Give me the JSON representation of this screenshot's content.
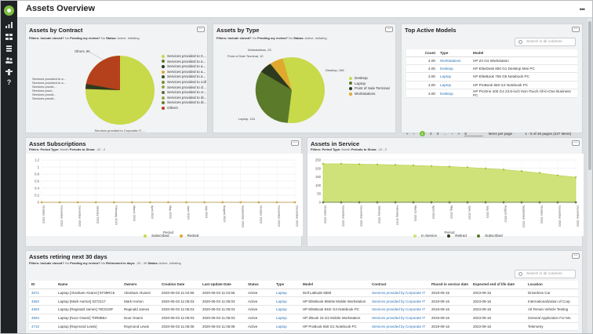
{
  "nav": {
    "icons": [
      "chart-icon",
      "grid-icon",
      "users-icon",
      "layers-icon",
      "help-icon"
    ]
  },
  "header": {
    "title": "Assets Overview",
    "menu": "•••"
  },
  "contract_panel": {
    "title": "Assets by Contract",
    "filters": {
      "closed_label": "Filters:",
      "closed_key": "Include closed?",
      "closed_val": "No",
      "pending_key": "Pending my review?",
      "pending_val": "No",
      "status_key": "Status:",
      "status_val": "Active, Initiating"
    },
    "slice_labels": [
      "Others, 96",
      "Services provided to a...",
      "Services provided to a...",
      "Services provid...",
      "Services provi...",
      "Services provid...",
      "Services provid...",
      "Services provided to Corporate IT, ..."
    ],
    "legend": [
      {
        "label": "Services provided to C...",
        "color": "#c8d94a"
      },
      {
        "label": "Services provided to a...",
        "color": "#5b7a2a"
      },
      {
        "label": "Services provided to a...",
        "color": "#2d3a1e"
      },
      {
        "label": "Services provided to a...",
        "color": "#e0a92e"
      },
      {
        "label": "Services provided to a...",
        "color": "#3f4f28"
      },
      {
        "label": "Services provided to coll",
        "color": "#7a8c3a"
      },
      {
        "label": "Services provided to cl...",
        "color": "#9aa33f"
      },
      {
        "label": "Services provided to cr...",
        "color": "#5c6e34"
      },
      {
        "label": "Services provided to di...",
        "color": "#8ea746"
      },
      {
        "label": "Services provided to di...",
        "color": "#6a7e2c"
      },
      {
        "label": "Others",
        "color": "#b5401c"
      }
    ]
  },
  "type_panel": {
    "title": "Assets by Type",
    "filters": {
      "closed_label": "Filters:",
      "closed_key": "Include closed?",
      "closed_val": "No",
      "pending_key": "Pending my review?",
      "pending_val": "No",
      "status_key": "Status:",
      "status_val": "Active, Initiating"
    },
    "slice_labels": [
      "Workstations, 20",
      "Point of Sale Terminal, 10",
      "Desktop, 106",
      "Laptop, 116"
    ],
    "legend": [
      {
        "label": "Desktop",
        "color": "#c8d94a"
      },
      {
        "label": "Laptop",
        "color": "#5b7a2a"
      },
      {
        "label": "Point of Sale Terminal",
        "color": "#2d3a1e"
      },
      {
        "label": "Workstations",
        "color": "#e0a92e"
      }
    ]
  },
  "top_models": {
    "title": "Top Active Models",
    "search_placeholder": "Search in all columns",
    "columns": [
      "Count",
      "Type",
      "Model"
    ],
    "rows": [
      {
        "count": "4.00",
        "type": "Workstations",
        "model": "HP Z4 G4 Workstation"
      },
      {
        "count": "4.00",
        "type": "Desktop",
        "model": "HP EliteDesk 800 G1 Desktop Mini PC"
      },
      {
        "count": "3.00",
        "type": "Laptop",
        "model": "HP EliteBook 755 G5 Notebook PC"
      },
      {
        "count": "3.00",
        "type": "Laptop",
        "model": "HP ProBook 650 G4 Notebook PC"
      },
      {
        "count": "3.00",
        "type": "Desktop",
        "model": "HP ProOne 400 G4 23.8-inch Non-Touch All-in-One Business PC"
      }
    ],
    "pager": {
      "first": "«",
      "prev": "‹",
      "pages": [
        "1",
        "2",
        "3"
      ],
      "ellipsis": "...",
      "next": "›",
      "last": "»",
      "per_page": "5",
      "per_page_label": "items per page",
      "summary": "1 - 5 of 46 pages (227 items)"
    }
  },
  "subscriptions": {
    "title": "Asset Subscriptions",
    "filters": {
      "label": "Filters:",
      "period_key": "Period Type:",
      "period_val": "Month",
      "show_key": "Periods to Show:",
      "show_val": "-12 - 2"
    },
    "xlabel": "Period",
    "legend": [
      "Subscribed",
      "Retired"
    ]
  },
  "in_service": {
    "title": "Assets in Service",
    "filters": {
      "label": "Filters:",
      "period_key": "Period Type:",
      "period_val": "Month",
      "show_key": "Periods to Show:",
      "show_val": "-12 - 2"
    },
    "xlabel": "Period",
    "legend": [
      "In Service",
      "Retired",
      "Subscribed"
    ]
  },
  "chart_data": [
    {
      "type": "line",
      "title": "Asset Subscriptions",
      "xlabel": "Period",
      "ylabel": "",
      "categories": [
        "October 2022",
        "November 2022",
        "December 2022",
        "January 2023",
        "February 2023",
        "March 2023",
        "April 2023",
        "May 2023",
        "June 2023",
        "July 2023",
        "August 2023",
        "September 2023",
        "October 2023",
        "November 2023",
        "December 2023"
      ],
      "ylim": [
        0,
        1.2
      ],
      "yticks": [
        "0",
        "0.2",
        "0.4",
        "0.6",
        "0.8",
        "1",
        "1.2"
      ],
      "series": [
        {
          "name": "Subscribed",
          "values": [
            0,
            0,
            0,
            0,
            0,
            0,
            0,
            0,
            0,
            0,
            0,
            0,
            0,
            0,
            0
          ]
        },
        {
          "name": "Retired",
          "values": [
            0,
            0,
            0,
            0,
            0,
            0,
            0,
            0,
            0,
            0,
            0,
            0,
            0,
            0,
            0
          ]
        }
      ]
    },
    {
      "type": "area",
      "title": "Assets in Service",
      "xlabel": "Period",
      "ylabel": "",
      "categories": [
        "October 2022",
        "November 2022",
        "December 2022",
        "January 2023",
        "February 2023",
        "March 2023",
        "April 2023",
        "May 2023",
        "June 2023",
        "July 2023",
        "August 2023",
        "September 2023",
        "October 2023",
        "November 2023",
        "December 2023"
      ],
      "ylim": [
        0,
        250
      ],
      "yticks": [
        "0",
        "50",
        "100",
        "150",
        "200",
        "250"
      ],
      "series": [
        {
          "name": "In Service",
          "values": [
            227,
            227,
            225,
            223,
            221,
            218,
            214,
            211,
            206,
            200,
            193,
            184,
            173,
            159,
            148
          ]
        },
        {
          "name": "Retired",
          "values": [
            0,
            0,
            0,
            0,
            0,
            0,
            0,
            0,
            0,
            0,
            0,
            0,
            0,
            0,
            0
          ]
        },
        {
          "name": "Subscribed",
          "values": [
            0,
            0,
            0,
            0,
            0,
            0,
            0,
            0,
            0,
            0,
            0,
            0,
            0,
            0,
            0
          ]
        }
      ]
    },
    {
      "type": "pie",
      "title": "Assets by Type",
      "categories": [
        "Desktop",
        "Laptop",
        "Point of Sale Terminal",
        "Workstations"
      ],
      "values": [
        106,
        116,
        10,
        20
      ]
    },
    {
      "type": "pie",
      "title": "Assets by Contract",
      "categories": [
        "Services provided to Corporate IT",
        "Services provided to a...",
        "Services provided to a...",
        "Services provided to a...",
        "Services provided to a...",
        "Services provided to coll",
        "Services provided to cl...",
        "Services provided to cr...",
        "Services provided to di...",
        "Services provided to di...",
        "Others"
      ],
      "values": [
        140,
        2,
        2,
        2,
        1,
        1,
        1,
        1,
        1,
        1,
        96
      ]
    }
  ],
  "retiring": {
    "title": "Assets retiring next 30 days",
    "filters": {
      "label": "Filters:",
      "closed_key": "Include closed?",
      "closed_val": "No",
      "pending_key": "Pending my review?",
      "pending_val": "No",
      "days_key": "Retirement in days:",
      "days_val": "-20 - 30",
      "status_key": "Status:",
      "status_val": "Active, Initiating"
    },
    "columns": [
      "ID",
      "Name",
      "Owners",
      "Creation Date",
      "Last Update Date",
      "Status",
      "Type",
      "Model",
      "Contract",
      "Placed in service date",
      "Expected end of life date",
      "Location"
    ],
    "search_placeholder": "Search in all columns",
    "rows": [
      {
        "id": "4671",
        "name": "Laptop [Abraham Alvarez] 9T39RC6",
        "owners": "Abraham Alvarez",
        "created": "2020-06-03 11:04:55",
        "updated": "2020-06-03 11:04:55",
        "status": "Active",
        "type": "Laptop",
        "model": "Dell Latitude 5580",
        "contract": "Services provided by Corporate IT",
        "placed": "2019-09-15",
        "eol": "2023-09-15",
        "location": "Driverless Car"
      },
      {
        "id": "4692",
        "name": "Laptop [Mark Horton] 0272117",
        "owners": "Mark Horton",
        "created": "2020-06-03 11:05:03",
        "updated": "2020-06-03 11:05:03",
        "status": "Active",
        "type": "Laptop",
        "model": "HP EliteBook 8560w Mobile Workstation",
        "contract": "Services provided by Corporate IT",
        "placed": "2019-09-16",
        "eol": "2023-09-16",
        "location": "Internationalization of Corp"
      },
      {
        "id": "4693",
        "name": "Laptop [Reginald James] 78CD23F",
        "owners": "Reginald James",
        "created": "2020-06-03 11:05:03",
        "updated": "2020-06-03 11:05:03",
        "status": "Active",
        "type": "Laptop",
        "model": "HP EliteBook 840r G4 Notebook PC",
        "contract": "Services provided by Corporate IT",
        "placed": "2019-09-16",
        "eol": "2023-09-16",
        "location": "All Terrain Vehicle Testing"
      },
      {
        "id": "4694",
        "name": "Laptop [Noor Osami] T0R8B6A",
        "owners": "Noor Osami",
        "created": "2020-06-03 11:05:03",
        "updated": "2020-06-03 11:05:03",
        "status": "Active",
        "type": "Laptop",
        "model": "HP ZBook 15 G2 Mobile Workstation",
        "contract": "Services provided by Corporate IT",
        "placed": "2019-09-16",
        "eol": "2023-09-16",
        "location": "General Application For Mo"
      },
      {
        "id": "4710",
        "name": "Laptop [Raymond Lewis]",
        "owners": "Raymond Lewis",
        "created": "2020-06-03 11:05:08",
        "updated": "2020-06-03 11:05:08",
        "status": "Active",
        "type": "Laptop",
        "model": "HP ProBook 650 G1 Notebook PC",
        "contract": "Services provided by Corporate IT",
        "placed": "2019-09-16",
        "eol": "2023-09-16",
        "location": "Telemetry"
      }
    ]
  },
  "colors": {
    "accent": "#7cbf3f",
    "area_fill": "#cfe27a",
    "line": "#9dc43a",
    "link": "#2a73b8",
    "nav": "#1f2326"
  }
}
